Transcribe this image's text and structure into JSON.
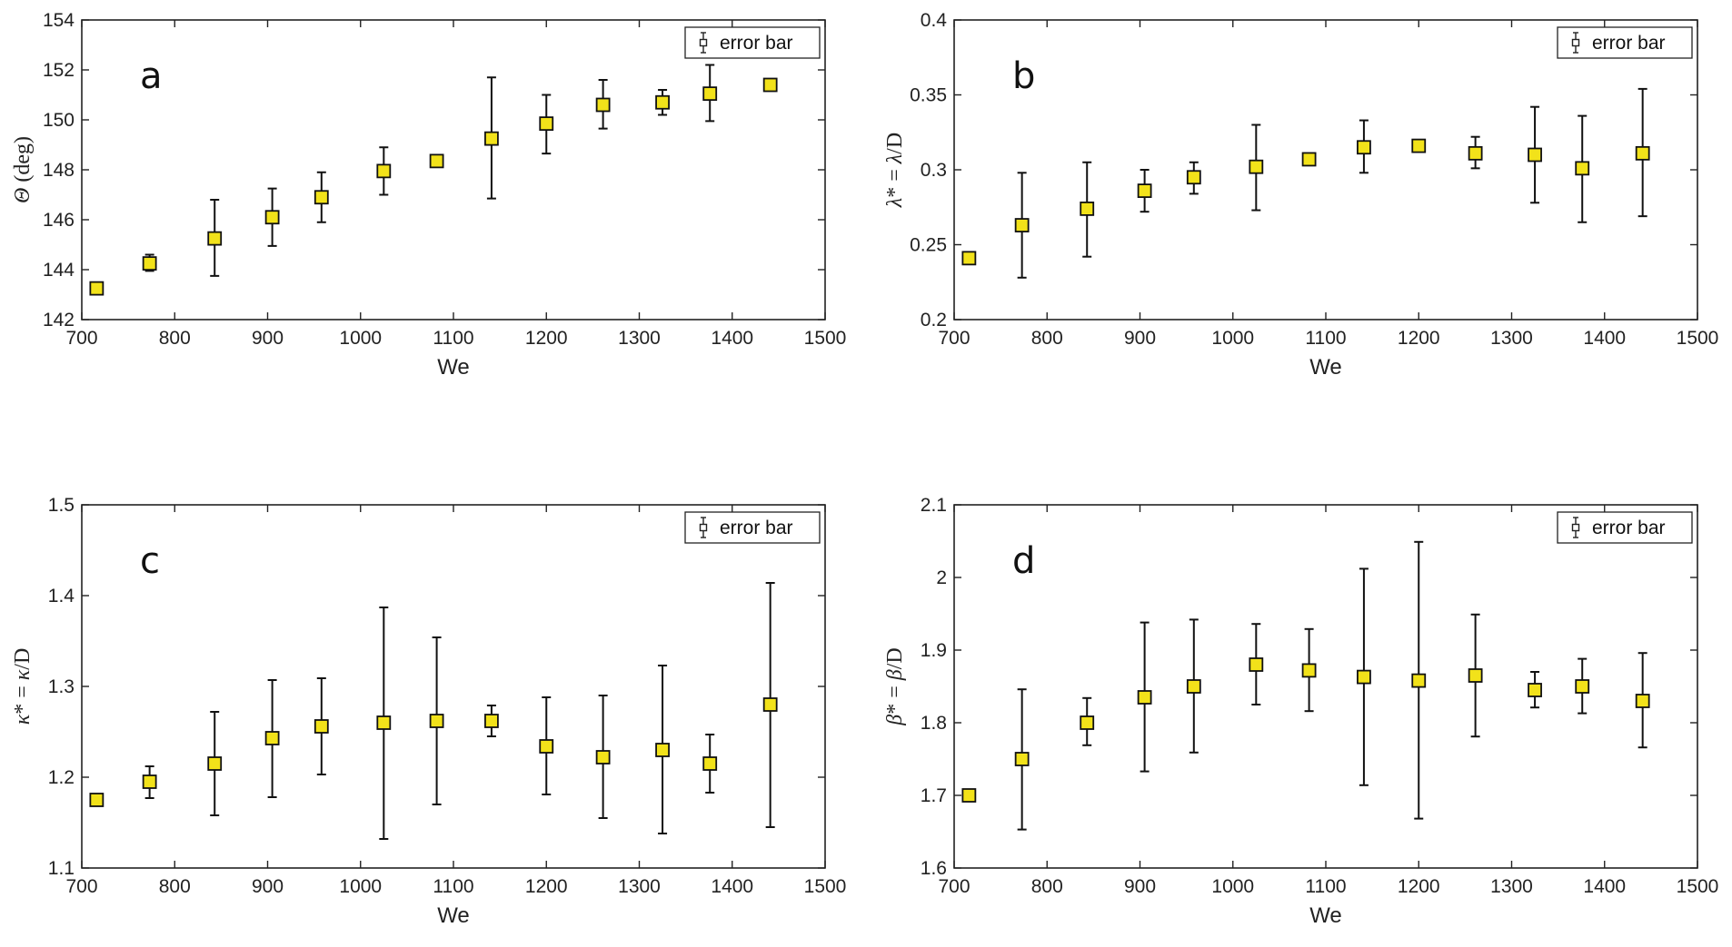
{
  "chart_data": [
    {
      "type": "scatter",
      "panel_label": "a",
      "legend_label": "error bar",
      "legend_position": "top-right",
      "xlabel": "We",
      "ylabel_parts": [
        {
          "t": "Θ",
          "i": true
        },
        {
          "t": " (deg)",
          "i": false
        }
      ],
      "xlim": [
        700,
        1500
      ],
      "ylim": [
        142,
        154
      ],
      "xticks": [
        700,
        800,
        900,
        1000,
        1100,
        1200,
        1300,
        1400,
        1500
      ],
      "yticks": [
        142,
        144,
        146,
        148,
        150,
        152,
        154
      ],
      "ytick_labels": [
        "142",
        "144",
        "146",
        "148",
        "150",
        "152",
        "154"
      ],
      "points": [
        {
          "x": 716,
          "y": 143.25,
          "lo": 143.1,
          "hi": 143.4
        },
        {
          "x": 773,
          "y": 144.25,
          "lo": 143.95,
          "hi": 144.6
        },
        {
          "x": 843,
          "y": 145.25,
          "lo": 143.75,
          "hi": 146.8
        },
        {
          "x": 905,
          "y": 146.1,
          "lo": 144.95,
          "hi": 147.25
        },
        {
          "x": 958,
          "y": 146.9,
          "lo": 145.9,
          "hi": 147.9
        },
        {
          "x": 1025,
          "y": 147.95,
          "lo": 147.0,
          "hi": 148.9
        },
        {
          "x": 1082,
          "y": 148.35,
          "lo": 148.15,
          "hi": 148.55
        },
        {
          "x": 1141,
          "y": 149.25,
          "lo": 146.85,
          "hi": 151.7
        },
        {
          "x": 1200,
          "y": 149.85,
          "lo": 148.65,
          "hi": 151.0
        },
        {
          "x": 1261,
          "y": 150.6,
          "lo": 149.65,
          "hi": 151.6
        },
        {
          "x": 1325,
          "y": 150.7,
          "lo": 150.2,
          "hi": 151.2
        },
        {
          "x": 1376,
          "y": 151.05,
          "lo": 149.95,
          "hi": 152.2
        },
        {
          "x": 1441,
          "y": 151.4,
          "lo": 151.25,
          "hi": 151.55
        }
      ]
    },
    {
      "type": "scatter",
      "panel_label": "b",
      "legend_label": "error bar",
      "legend_position": "top-right",
      "xlabel": "We",
      "ylabel_parts": [
        {
          "t": "λ",
          "i": true
        },
        {
          "t": "* = ",
          "i": false
        },
        {
          "t": "λ",
          "i": true
        },
        {
          "t": "/D",
          "i": false
        }
      ],
      "xlim": [
        700,
        1500
      ],
      "ylim": [
        0.2,
        0.4
      ],
      "xticks": [
        700,
        800,
        900,
        1000,
        1100,
        1200,
        1300,
        1400,
        1500
      ],
      "yticks": [
        0.2,
        0.25,
        0.3,
        0.35,
        0.4
      ],
      "ytick_labels": [
        "0.2",
        "0.25",
        "0.3",
        "0.35",
        "0.4"
      ],
      "points": [
        {
          "x": 716,
          "y": 0.241,
          "lo": 0.238,
          "hi": 0.244
        },
        {
          "x": 773,
          "y": 0.263,
          "lo": 0.228,
          "hi": 0.298
        },
        {
          "x": 843,
          "y": 0.274,
          "lo": 0.242,
          "hi": 0.305
        },
        {
          "x": 905,
          "y": 0.286,
          "lo": 0.272,
          "hi": 0.3
        },
        {
          "x": 958,
          "y": 0.295,
          "lo": 0.284,
          "hi": 0.305
        },
        {
          "x": 1025,
          "y": 0.302,
          "lo": 0.273,
          "hi": 0.33
        },
        {
          "x": 1082,
          "y": 0.307,
          "lo": 0.304,
          "hi": 0.31
        },
        {
          "x": 1141,
          "y": 0.315,
          "lo": 0.298,
          "hi": 0.333
        },
        {
          "x": 1200,
          "y": 0.316,
          "lo": 0.313,
          "hi": 0.319
        },
        {
          "x": 1261,
          "y": 0.311,
          "lo": 0.301,
          "hi": 0.322
        },
        {
          "x": 1325,
          "y": 0.31,
          "lo": 0.278,
          "hi": 0.342
        },
        {
          "x": 1376,
          "y": 0.301,
          "lo": 0.265,
          "hi": 0.336
        },
        {
          "x": 1441,
          "y": 0.311,
          "lo": 0.269,
          "hi": 0.354
        }
      ]
    },
    {
      "type": "scatter",
      "panel_label": "c",
      "legend_label": "error bar",
      "legend_position": "top-right",
      "xlabel": "We",
      "ylabel_parts": [
        {
          "t": "κ",
          "i": true
        },
        {
          "t": "* = ",
          "i": false
        },
        {
          "t": "κ",
          "i": true
        },
        {
          "t": "/D",
          "i": false
        }
      ],
      "xlim": [
        700,
        1500
      ],
      "ylim": [
        1.1,
        1.5
      ],
      "xticks": [
        700,
        800,
        900,
        1000,
        1100,
        1200,
        1300,
        1400,
        1500
      ],
      "yticks": [
        1.1,
        1.2,
        1.3,
        1.4,
        1.5
      ],
      "ytick_labels": [
        "1.1",
        "1.2",
        "1.3",
        "1.4",
        "1.5"
      ],
      "points": [
        {
          "x": 716,
          "y": 1.175,
          "lo": 1.17,
          "hi": 1.18
        },
        {
          "x": 773,
          "y": 1.195,
          "lo": 1.177,
          "hi": 1.212
        },
        {
          "x": 843,
          "y": 1.215,
          "lo": 1.158,
          "hi": 1.272
        },
        {
          "x": 905,
          "y": 1.243,
          "lo": 1.178,
          "hi": 1.307
        },
        {
          "x": 958,
          "y": 1.256,
          "lo": 1.203,
          "hi": 1.309
        },
        {
          "x": 1025,
          "y": 1.26,
          "lo": 1.132,
          "hi": 1.387
        },
        {
          "x": 1082,
          "y": 1.262,
          "lo": 1.17,
          "hi": 1.354
        },
        {
          "x": 1141,
          "y": 1.262,
          "lo": 1.245,
          "hi": 1.279
        },
        {
          "x": 1200,
          "y": 1.234,
          "lo": 1.181,
          "hi": 1.288
        },
        {
          "x": 1261,
          "y": 1.222,
          "lo": 1.155,
          "hi": 1.29
        },
        {
          "x": 1325,
          "y": 1.23,
          "lo": 1.138,
          "hi": 1.323
        },
        {
          "x": 1376,
          "y": 1.215,
          "lo": 1.183,
          "hi": 1.247
        },
        {
          "x": 1441,
          "y": 1.28,
          "lo": 1.145,
          "hi": 1.414
        }
      ]
    },
    {
      "type": "scatter",
      "panel_label": "d",
      "legend_label": "error bar",
      "legend_position": "top-right",
      "xlabel": "We",
      "ylabel_parts": [
        {
          "t": "β",
          "i": true
        },
        {
          "t": "* = ",
          "i": false
        },
        {
          "t": "β",
          "i": true
        },
        {
          "t": "/D",
          "i": false
        }
      ],
      "xlim": [
        700,
        1500
      ],
      "ylim": [
        1.6,
        2.1
      ],
      "xticks": [
        700,
        800,
        900,
        1000,
        1100,
        1200,
        1300,
        1400,
        1500
      ],
      "yticks": [
        1.6,
        1.7,
        1.8,
        1.9,
        2.0,
        2.1
      ],
      "ytick_labels": [
        "1.6",
        "1.7",
        "1.8",
        "1.9",
        "2",
        "2.1"
      ],
      "points": [
        {
          "x": 716,
          "y": 1.7,
          "lo": 1.696,
          "hi": 1.704
        },
        {
          "x": 773,
          "y": 1.75,
          "lo": 1.653,
          "hi": 1.846
        },
        {
          "x": 843,
          "y": 1.8,
          "lo": 1.769,
          "hi": 1.834
        },
        {
          "x": 905,
          "y": 1.835,
          "lo": 1.733,
          "hi": 1.938
        },
        {
          "x": 958,
          "y": 1.85,
          "lo": 1.759,
          "hi": 1.942
        },
        {
          "x": 1025,
          "y": 1.88,
          "lo": 1.825,
          "hi": 1.936
        },
        {
          "x": 1082,
          "y": 1.872,
          "lo": 1.816,
          "hi": 1.929
        },
        {
          "x": 1141,
          "y": 1.863,
          "lo": 1.714,
          "hi": 2.012
        },
        {
          "x": 1200,
          "y": 1.858,
          "lo": 1.668,
          "hi": 2.049
        },
        {
          "x": 1261,
          "y": 1.865,
          "lo": 1.781,
          "hi": 1.949
        },
        {
          "x": 1325,
          "y": 1.845,
          "lo": 1.821,
          "hi": 1.87
        },
        {
          "x": 1376,
          "y": 1.85,
          "lo": 1.813,
          "hi": 1.888
        },
        {
          "x": 1441,
          "y": 1.83,
          "lo": 1.766,
          "hi": 1.896
        }
      ]
    }
  ],
  "colors": {
    "marker_fill": "#f2e21a",
    "marker_edge": "#111111",
    "axis": "#222222",
    "background": "#ffffff"
  }
}
